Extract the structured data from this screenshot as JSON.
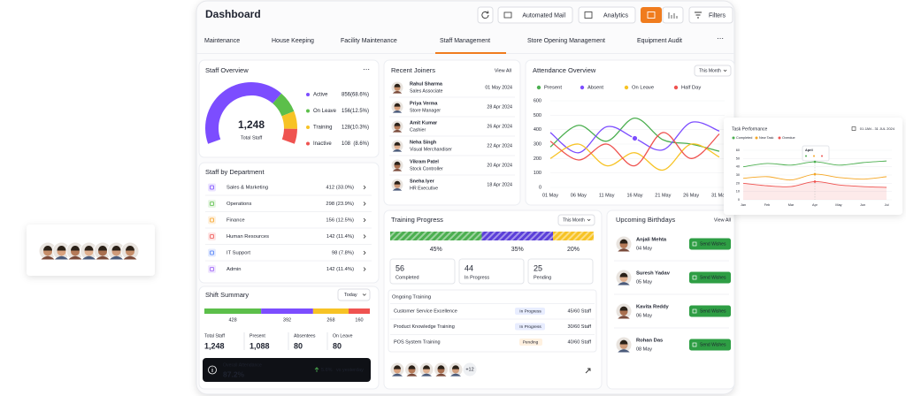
{
  "header": {
    "title": "Dashboard",
    "automated_mail": "Automated Mail",
    "analytics": "Analytics",
    "filters": "Filters"
  },
  "tabs": [
    "Maintenance",
    "House Keeping",
    "Facility Maintenance",
    "Staff Management",
    "Store Opening Management",
    "Equipment Audit"
  ],
  "staff_overview": {
    "title": "Staff Overview",
    "total": "1,248",
    "total_label": "Total Staff",
    "segments": [
      {
        "name": "Active",
        "value": 856,
        "share": "(68.6%)",
        "color": "#7c4dff"
      },
      {
        "name": "On Leave",
        "value": 156,
        "share": "(12.5%)",
        "color": "#5cbf4a"
      },
      {
        "name": "Training",
        "value": 128,
        "share": "(10.3%)",
        "color": "#f7c325"
      },
      {
        "name": "Inactive",
        "value": 108,
        "share": "(8.6%)",
        "color": "#ef5350"
      }
    ]
  },
  "departments": {
    "title": "Staff by Department",
    "rows": [
      {
        "name": "Sales & Marketing",
        "value": "412 (33.0%)",
        "color": "#7c4dff"
      },
      {
        "name": "Operations",
        "value": "298 (23.9%)",
        "color": "#5cbf4a"
      },
      {
        "name": "Finance",
        "value": "156 (12.5%)",
        "color": "#f7a325"
      },
      {
        "name": "Human Resources",
        "value": "142 (11.4%)",
        "color": "#ef5350"
      },
      {
        "name": "IT Support",
        "value": "98 (7.8%)",
        "color": "#4a7cf7"
      },
      {
        "name": "Admin",
        "value": "142 (11.4%)",
        "color": "#9c5cf7"
      }
    ]
  },
  "shift_summary": {
    "title": "Shift Summary",
    "period": "Today",
    "values": [
      428,
      392,
      268,
      160
    ],
    "colors": [
      "#5cbf4a",
      "#7c4dff",
      "#f7c325",
      "#ef5350"
    ],
    "stats": [
      {
        "label": "Total Staff",
        "value": "1,248"
      },
      {
        "label": "Present",
        "value": "1,088"
      },
      {
        "label": "Absentees",
        "value": "80"
      },
      {
        "label": "On Leave",
        "value": "80"
      }
    ],
    "overall": {
      "label": "Overall Attendance",
      "value": "87.2%",
      "change": "5.6%",
      "comparison": "vs yesterday"
    }
  },
  "recent_joiners": {
    "title": "Recent Joiners",
    "view_all": "View All",
    "rows": [
      {
        "name": "Rahul Sharma",
        "role": "Sales Associate",
        "date": "01 May 2024"
      },
      {
        "name": "Priya Verma",
        "role": "Store Manager",
        "date": "28 Apr 2024"
      },
      {
        "name": "Amit Kumar",
        "role": "Cashier",
        "date": "26 Apr 2024"
      },
      {
        "name": "Neha Singh",
        "role": "Visual Merchandiser",
        "date": "22 Apr 2024"
      },
      {
        "name": "Vikram Patel",
        "role": "Stock Controller",
        "date": "20 Apr 2024"
      },
      {
        "name": "Sneha Iyer",
        "role": "HR Executive",
        "date": "18 Apr 2024"
      }
    ]
  },
  "attendance": {
    "type": "line",
    "title": "Attendance Overview",
    "period": "This Month",
    "categories": [
      "01 May",
      "06 May",
      "11 May",
      "16 May",
      "21 May",
      "26 May",
      "31 May"
    ],
    "ylim": [
      0,
      600
    ],
    "yticks": [
      0,
      100,
      200,
      300,
      400,
      500,
      600
    ],
    "grid": true,
    "series": [
      {
        "name": "Present",
        "color": "#4caf50",
        "values": [
          280,
          430,
          320,
          480,
          330,
          300,
          250
        ]
      },
      {
        "name": "Absent",
        "color": "#7c4dff",
        "values": [
          380,
          240,
          420,
          340,
          260,
          450,
          390
        ]
      },
      {
        "name": "On Leave",
        "color": "#f7c325",
        "values": [
          200,
          300,
          150,
          240,
          120,
          300,
          210
        ]
      },
      {
        "name": "Half Day",
        "color": "#ef5350",
        "values": [
          320,
          190,
          300,
          150,
          380,
          200,
          370
        ]
      }
    ]
  },
  "training": {
    "title": "Training Progress",
    "period": "This Month",
    "values": [
      45,
      35,
      20
    ],
    "value_labels": [
      "45%",
      "35%",
      "20%"
    ],
    "colors": [
      "#4caf50",
      "#5b3fd9",
      "#f7c325"
    ],
    "stats": [
      {
        "value": 56,
        "label": "Completed",
        "color": "#4caf50"
      },
      {
        "value": 44,
        "label": "In Progress",
        "color": "#3d5afe"
      },
      {
        "value": 25,
        "label": "Pending",
        "color": "#f57c00"
      }
    ],
    "ongoing_title": "Ongoing Training",
    "courses": [
      {
        "name": "Customer Service Excellence",
        "status": "In Progress",
        "staff": "45/60 Staff"
      },
      {
        "name": "Product Knowledge Training",
        "status": "In Progress",
        "staff": "30/60 Staff"
      },
      {
        "name": "POS System Training",
        "status": "Pending",
        "staff": "40/60 Staff"
      }
    ],
    "more": "+12"
  },
  "birthdays": {
    "title": "Upcoming Birthdays",
    "view_all": "View All",
    "action": "Send Wishes",
    "rows": [
      {
        "name": "Anjali Mehta",
        "date": "04 May"
      },
      {
        "name": "Suresh Yadav",
        "date": "05 May"
      },
      {
        "name": "Kavita Reddy",
        "date": "06 May"
      },
      {
        "name": "Rohan Das",
        "date": "08 May"
      }
    ]
  },
  "task_performance": {
    "type": "line",
    "title": "Task Performance",
    "date_range": "01 JAN - 31 JUL 2024",
    "categories": [
      "Jan",
      "Feb",
      "Mar",
      "Apr",
      "May",
      "Jun",
      "Jul"
    ],
    "ylim": [
      0,
      60
    ],
    "yticks": [
      0,
      10,
      20,
      30,
      40,
      50,
      60
    ],
    "grid": true,
    "tooltip": "April",
    "series": [
      {
        "name": "Completed",
        "color": "#4caf50",
        "values": [
          40,
          44,
          42,
          46,
          42,
          45,
          47
        ]
      },
      {
        "name": "New Task",
        "color": "#f5a623",
        "values": [
          26,
          28,
          24,
          31,
          27,
          25,
          28
        ]
      },
      {
        "name": "Overdue",
        "color": "#ef5350",
        "values": [
          20,
          17,
          16,
          22,
          18,
          16,
          15
        ]
      }
    ]
  }
}
